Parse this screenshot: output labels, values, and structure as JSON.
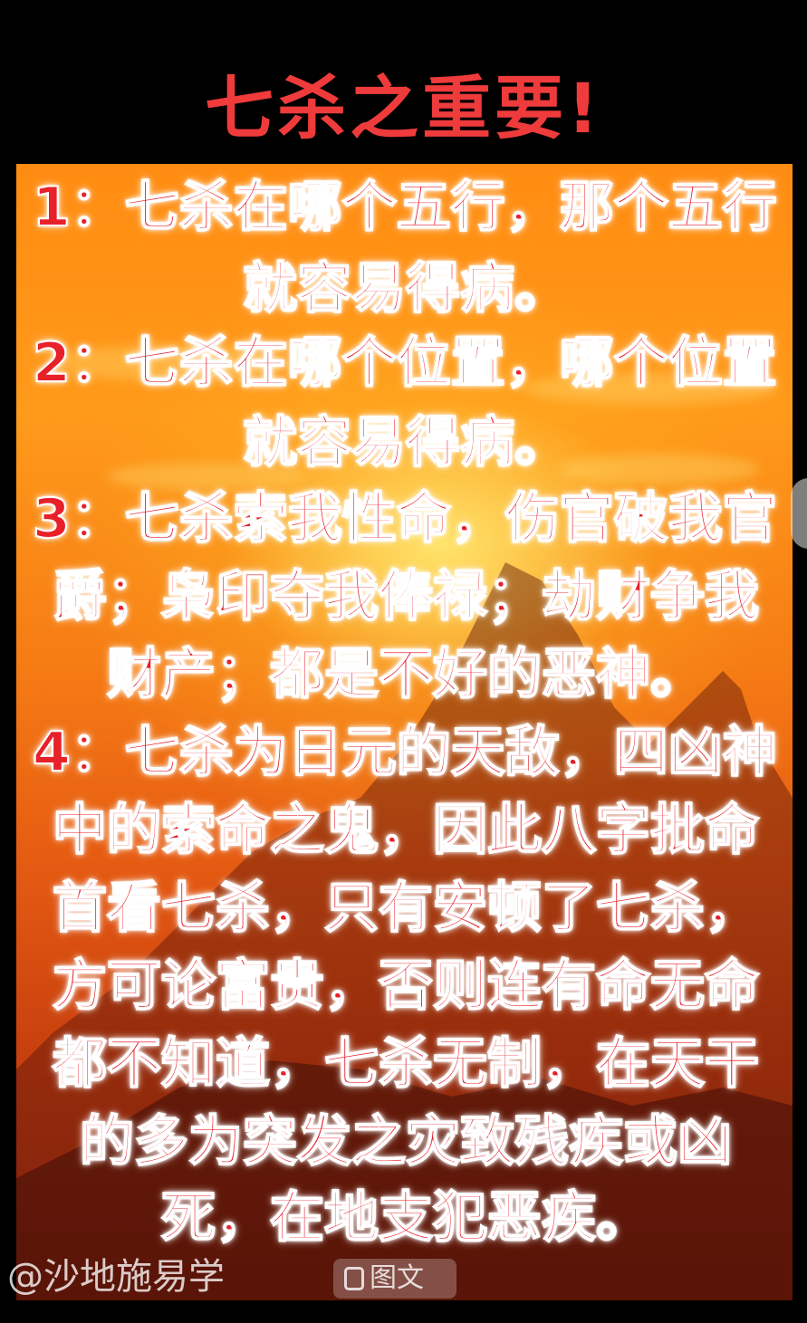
{
  "title": "七杀之重要!",
  "lines": [
    "1：七杀在哪个五行，那个五行",
    "就容易得病。",
    "2：七杀在哪个位置，哪个位置",
    "就容易得病。",
    "3：七杀索我性命，伤官破我官",
    "爵；枭印夺我俸禄；劫财争我",
    "财产；都是不好的恶神。",
    "4：七杀为日元的天敌，四凶神",
    "中的索命之鬼，因此八字批命",
    "首看七杀，只有安顿了七杀，",
    "方可论富贵，否则连有命无命",
    "都不知道，七杀无制，在天干",
    "的多为突发之灾致残疾或凶",
    "死，在地支犯恶疾。"
  ],
  "footer": {
    "handle": "@沙地施易学",
    "badge_label": "图文"
  },
  "colors": {
    "title": "#ef3b3b",
    "text": "#e8202a",
    "text_outline": "#ffffff",
    "background": "#000000",
    "sky_top": "#ff8c12",
    "sky_bottom": "#9c2a0c"
  },
  "icons": [
    "picture-icon",
    "mountain-silhouette"
  ]
}
